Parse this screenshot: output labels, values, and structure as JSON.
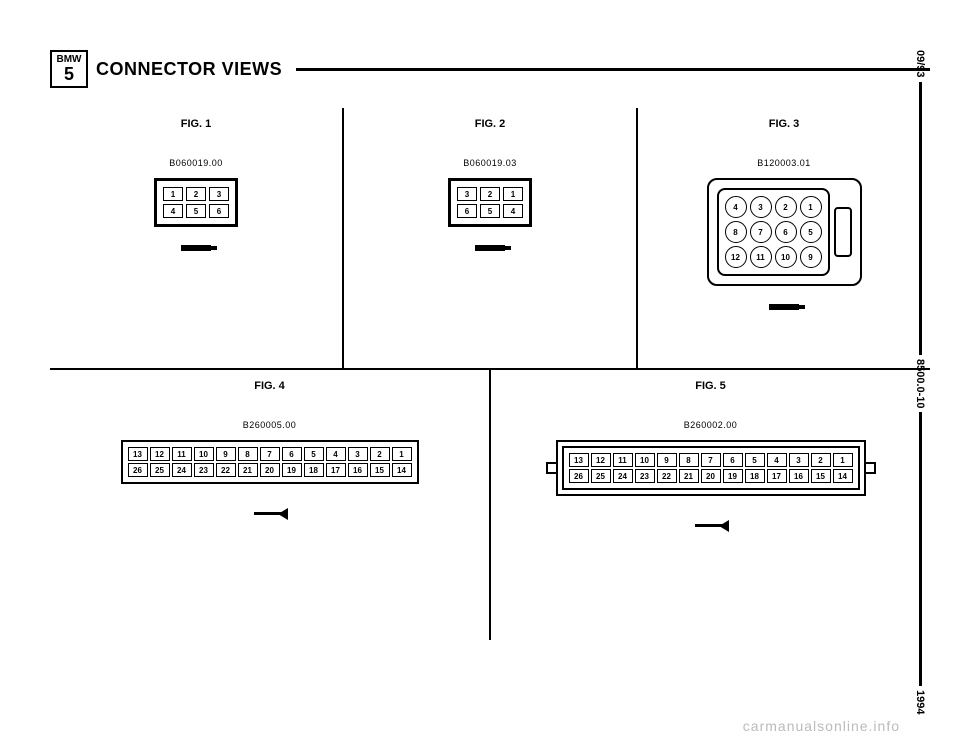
{
  "header": {
    "brand_top": "BMW",
    "brand_bot": "5",
    "title": "CONNECTOR VIEWS"
  },
  "side": {
    "date": "09/93",
    "doc": "8500.0-10",
    "year": "1994"
  },
  "fig1": {
    "label": "FIG. 1",
    "part": "B060019.00",
    "pins": [
      "1",
      "2",
      "3",
      "4",
      "5",
      "6"
    ]
  },
  "fig2": {
    "label": "FIG. 2",
    "part": "B060019.03",
    "pins": [
      "3",
      "2",
      "1",
      "6",
      "5",
      "4"
    ]
  },
  "fig3": {
    "label": "FIG. 3",
    "part": "B120003.01",
    "pins": [
      "4",
      "3",
      "2",
      "1",
      "8",
      "7",
      "6",
      "5",
      "12",
      "11",
      "10",
      "9"
    ]
  },
  "fig4": {
    "label": "FIG. 4",
    "part": "B260005.00",
    "pins": [
      "13",
      "12",
      "11",
      "10",
      "9",
      "8",
      "7",
      "6",
      "5",
      "4",
      "3",
      "2",
      "1",
      "26",
      "25",
      "24",
      "23",
      "22",
      "21",
      "20",
      "19",
      "18",
      "17",
      "16",
      "15",
      "14"
    ]
  },
  "fig5": {
    "label": "FIG. 5",
    "part": "B260002.00",
    "pins": [
      "13",
      "12",
      "11",
      "10",
      "9",
      "8",
      "7",
      "6",
      "5",
      "4",
      "3",
      "2",
      "1",
      "26",
      "25",
      "24",
      "23",
      "22",
      "21",
      "20",
      "19",
      "18",
      "17",
      "16",
      "15",
      "14"
    ]
  },
  "watermark": "carmanualsonline.info"
}
